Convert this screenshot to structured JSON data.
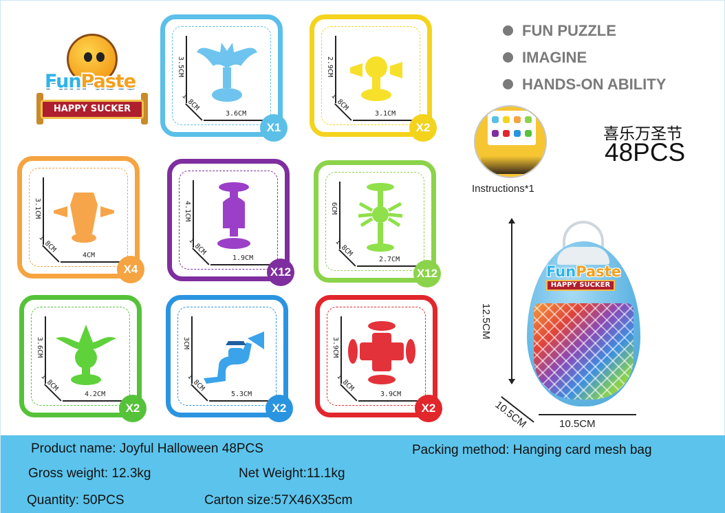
{
  "logo": {
    "word_part1": "Fun",
    "word_part2": "Paste",
    "ribbon": "HAPPY SUCKER"
  },
  "cards": [
    {
      "color": "#5bbfe8",
      "height": "3.5CM",
      "depth": "1.8CM",
      "width": "3.6CM",
      "qty": "X1",
      "toy": "bat",
      "toy_color": "#6ec4ef"
    },
    {
      "color": "#f4d31c",
      "height": "2.9CM",
      "depth": "1.8CM",
      "width": "3.1CM",
      "qty": "X2",
      "toy": "ghost-trumpet",
      "toy_color": "#f7e02a"
    },
    {
      "color": "#f5a441",
      "height": "3.1CM",
      "depth": "1.8CM",
      "width": "4CM",
      "qty": "X4",
      "toy": "coffin",
      "toy_color": "#f7a54a"
    },
    {
      "color": "#7e2e9e",
      "height": "4.1CM",
      "depth": "1.8CM",
      "width": "1.9CM",
      "qty": "X12",
      "toy": "tombstone",
      "toy_color": "#9b3fc8"
    },
    {
      "color": "#8bd34a",
      "height": "6CM",
      "depth": "1.8CM",
      "width": "2.7CM",
      "qty": "X12",
      "toy": "spider",
      "toy_color": "#8fe04a"
    },
    {
      "color": "#55c23a",
      "height": "3.6CM",
      "depth": "1.8CM",
      "width": "4.2CM",
      "qty": "X2",
      "toy": "witch-pumpkin",
      "toy_color": "#5ed13b"
    },
    {
      "color": "#2a94e0",
      "height": "3CM",
      "depth": "1.8CM",
      "width": "5.3CM",
      "qty": "X2",
      "toy": "witch-hook",
      "toy_color": "#3aa3ea"
    },
    {
      "color": "#e1262c",
      "height": "3.9CM",
      "depth": "1.8CM",
      "width": "3.9CM",
      "qty": "X2",
      "toy": "cross",
      "toy_color": "#e3323a"
    }
  ],
  "features": [
    "FUN PUZZLE",
    "IMAGINE",
    "HANDS-ON ABILITY"
  ],
  "instructions_label": "Instructions*1",
  "title_cn": "喜乐万圣节",
  "title_pcs": "48PCS",
  "bag": {
    "height_label": "12.5CM",
    "depth_label": "10.5CM",
    "width_label": "10.5CM",
    "logo_word1": "Fun",
    "logo_word2": "Paste",
    "logo_ribbon": "HAPPY SUCKER"
  },
  "footer": {
    "product_name": "Product name: Joyful Halloween 48PCS",
    "packing": "Packing method: Hanging card mesh bag",
    "gross_weight": "Gross weight: 12.3kg",
    "net_weight": "Net Weight:11.1kg",
    "quantity": "Quantity: 50PCS",
    "carton": "Carton size:57X46X35cm"
  }
}
